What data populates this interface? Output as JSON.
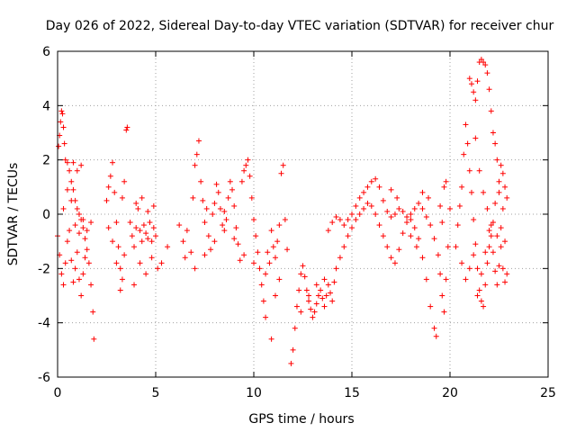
{
  "chart_data": {
    "type": "scatter",
    "title": "Day 026 of 2022, Sidereal Day-to-day VTEC variation (SDTVAR) for receiver chur",
    "xlabel": "GPS time / hours",
    "ylabel": "SDTVAR / TECUs",
    "xlim": [
      0,
      25
    ],
    "ylim": [
      -6,
      6
    ],
    "xticks": [
      0,
      5,
      10,
      15,
      20,
      25
    ],
    "yticks": [
      -6,
      -4,
      -2,
      0,
      2,
      4,
      6
    ],
    "xtick_labels": [
      "0",
      "5",
      "10",
      "15",
      "20",
      "25"
    ],
    "ytick_labels": [
      "-6",
      "-4",
      "-2",
      "0",
      "2",
      "4",
      "6"
    ],
    "grid": true,
    "marker": "+",
    "color": "#ff0000",
    "series": [
      {
        "name": "SDTVAR",
        "points": [
          [
            0.0,
            -0.8
          ],
          [
            0.05,
            2.5
          ],
          [
            0.1,
            2.9
          ],
          [
            0.15,
            3.4
          ],
          [
            0.2,
            3.8
          ],
          [
            0.25,
            3.7
          ],
          [
            0.3,
            3.2
          ],
          [
            0.35,
            2.6
          ],
          [
            0.4,
            2.0
          ],
          [
            0.5,
            1.9
          ],
          [
            0.6,
            1.6
          ],
          [
            0.7,
            1.2
          ],
          [
            0.8,
            0.9
          ],
          [
            0.9,
            0.5
          ],
          [
            1.0,
            0.2
          ],
          [
            1.1,
            0.0
          ],
          [
            1.2,
            -0.2
          ],
          [
            1.3,
            -0.5
          ],
          [
            1.4,
            -0.9
          ],
          [
            1.5,
            -1.3
          ],
          [
            1.6,
            -1.8
          ],
          [
            1.7,
            -2.6
          ],
          [
            1.8,
            -3.6
          ],
          [
            1.85,
            -4.6
          ],
          [
            0.1,
            -1.5
          ],
          [
            0.2,
            -2.2
          ],
          [
            0.3,
            -2.6
          ],
          [
            0.4,
            -1.8
          ],
          [
            0.5,
            -1.0
          ],
          [
            0.6,
            -0.6
          ],
          [
            0.7,
            -1.7
          ],
          [
            0.8,
            -2.5
          ],
          [
            0.9,
            -2.0
          ],
          [
            1.0,
            -1.4
          ],
          [
            1.1,
            -2.4
          ],
          [
            1.2,
            -3.0
          ],
          [
            1.3,
            -2.2
          ],
          [
            1.4,
            -1.6
          ],
          [
            0.3,
            0.2
          ],
          [
            0.5,
            0.9
          ],
          [
            0.7,
            0.5
          ],
          [
            0.9,
            -0.4
          ],
          [
            1.1,
            -0.7
          ],
          [
            1.3,
            -0.2
          ],
          [
            1.5,
            -0.6
          ],
          [
            1.7,
            -0.3
          ],
          [
            0.8,
            1.9
          ],
          [
            1.0,
            1.6
          ],
          [
            1.2,
            1.8
          ],
          [
            2.5,
            0.5
          ],
          [
            2.6,
            1.0
          ],
          [
            2.7,
            1.4
          ],
          [
            2.8,
            1.9
          ],
          [
            2.9,
            0.8
          ],
          [
            3.0,
            -0.3
          ],
          [
            3.1,
            -1.2
          ],
          [
            3.2,
            -2.0
          ],
          [
            3.3,
            -2.4
          ],
          [
            3.4,
            -1.5
          ],
          [
            2.6,
            -0.5
          ],
          [
            2.8,
            -1.0
          ],
          [
            3.0,
            -1.8
          ],
          [
            3.2,
            -2.8
          ],
          [
            3.5,
            3.1
          ],
          [
            3.55,
            3.2
          ],
          [
            3.4,
            1.2
          ],
          [
            3.3,
            0.6
          ],
          [
            3.7,
            -0.3
          ],
          [
            3.8,
            -0.8
          ],
          [
            3.9,
            -1.2
          ],
          [
            4.0,
            -0.5
          ],
          [
            4.1,
            0.2
          ],
          [
            4.2,
            -0.6
          ],
          [
            4.3,
            -1.0
          ],
          [
            4.4,
            -0.4
          ],
          [
            4.5,
            -0.7
          ],
          [
            4.6,
            -0.9
          ],
          [
            4.7,
            -0.3
          ],
          [
            4.8,
            -1.0
          ],
          [
            4.9,
            -0.5
          ],
          [
            5.0,
            -0.8
          ],
          [
            3.9,
            -2.6
          ],
          [
            4.2,
            -1.8
          ],
          [
            4.5,
            -2.2
          ],
          [
            4.8,
            -1.6
          ],
          [
            5.1,
            -2.0
          ],
          [
            4.0,
            0.4
          ],
          [
            4.3,
            0.6
          ],
          [
            4.6,
            0.1
          ],
          [
            4.9,
            0.3
          ],
          [
            5.3,
            -1.8
          ],
          [
            5.6,
            -1.2
          ],
          [
            6.2,
            -0.4
          ],
          [
            6.4,
            -1.0
          ],
          [
            6.6,
            -0.6
          ],
          [
            6.8,
            -1.4
          ],
          [
            6.9,
            0.6
          ],
          [
            7.0,
            1.8
          ],
          [
            7.1,
            2.2
          ],
          [
            7.2,
            2.7
          ],
          [
            7.3,
            1.2
          ],
          [
            7.4,
            0.5
          ],
          [
            7.5,
            -0.3
          ],
          [
            7.6,
            0.2
          ],
          [
            7.7,
            -0.8
          ],
          [
            7.8,
            -1.3
          ],
          [
            7.9,
            0.0
          ],
          [
            8.0,
            0.4
          ],
          [
            8.1,
            1.1
          ],
          [
            8.2,
            0.8
          ],
          [
            8.3,
            0.2
          ],
          [
            8.4,
            -0.4
          ],
          [
            8.5,
            0.1
          ],
          [
            8.6,
            -0.2
          ],
          [
            8.7,
            0.6
          ],
          [
            8.8,
            1.2
          ],
          [
            8.9,
            0.9
          ],
          [
            9.0,
            0.3
          ],
          [
            9.1,
            -0.5
          ],
          [
            9.2,
            -1.1
          ],
          [
            9.3,
            -1.7
          ],
          [
            9.4,
            1.2
          ],
          [
            9.5,
            1.6
          ],
          [
            9.6,
            1.8
          ],
          [
            9.7,
            2.0
          ],
          [
            9.8,
            1.4
          ],
          [
            9.9,
            0.6
          ],
          [
            10.0,
            -0.2
          ],
          [
            6.5,
            -1.6
          ],
          [
            7.0,
            -2.0
          ],
          [
            7.5,
            -1.5
          ],
          [
            8.0,
            -1.0
          ],
          [
            8.5,
            -0.6
          ],
          [
            9.0,
            -0.9
          ],
          [
            9.5,
            -1.5
          ],
          [
            10.0,
            -1.8
          ],
          [
            10.1,
            -0.8
          ],
          [
            10.2,
            -1.4
          ],
          [
            10.3,
            -2.0
          ],
          [
            10.4,
            -2.6
          ],
          [
            10.5,
            -3.2
          ],
          [
            10.6,
            -2.2
          ],
          [
            10.7,
            -1.4
          ],
          [
            10.8,
            -1.8
          ],
          [
            10.9,
            -0.6
          ],
          [
            11.0,
            -1.2
          ],
          [
            11.1,
            -1.6
          ],
          [
            11.2,
            -1.0
          ],
          [
            11.3,
            -0.4
          ],
          [
            11.4,
            1.5
          ],
          [
            11.5,
            1.8
          ],
          [
            11.3,
            -2.4
          ],
          [
            11.1,
            -3.0
          ],
          [
            10.9,
            -4.6
          ],
          [
            10.6,
            -3.8
          ],
          [
            11.6,
            -0.2
          ],
          [
            11.7,
            -1.3
          ],
          [
            11.9,
            -5.5
          ],
          [
            12.0,
            -5.0
          ],
          [
            12.1,
            -4.2
          ],
          [
            12.2,
            -3.4
          ],
          [
            12.3,
            -2.8
          ],
          [
            12.4,
            -2.2
          ],
          [
            12.5,
            -1.9
          ],
          [
            12.6,
            -2.3
          ],
          [
            12.7,
            -2.8
          ],
          [
            12.8,
            -3.2
          ],
          [
            12.9,
            -3.5
          ],
          [
            13.0,
            -3.8
          ],
          [
            13.1,
            -3.6
          ],
          [
            13.2,
            -3.3
          ],
          [
            13.3,
            -3.0
          ],
          [
            13.4,
            -2.8
          ],
          [
            13.5,
            -3.1
          ],
          [
            13.6,
            -3.4
          ],
          [
            13.7,
            -3.0
          ],
          [
            13.8,
            -2.6
          ],
          [
            13.9,
            -2.9
          ],
          [
            14.0,
            -3.2
          ],
          [
            12.4,
            -3.6
          ],
          [
            12.8,
            -3.0
          ],
          [
            13.2,
            -2.6
          ],
          [
            13.6,
            -2.4
          ],
          [
            14.1,
            -2.5
          ],
          [
            14.2,
            -2.0
          ],
          [
            14.4,
            -1.6
          ],
          [
            14.6,
            -1.2
          ],
          [
            14.8,
            -0.8
          ],
          [
            15.0,
            -0.5
          ],
          [
            15.2,
            -0.2
          ],
          [
            15.4,
            0.0
          ],
          [
            15.6,
            0.2
          ],
          [
            15.8,
            0.4
          ],
          [
            16.0,
            0.3
          ],
          [
            16.2,
            0.0
          ],
          [
            16.4,
            -0.4
          ],
          [
            16.6,
            -0.8
          ],
          [
            16.8,
            -1.2
          ],
          [
            17.0,
            -1.6
          ],
          [
            17.2,
            -1.8
          ],
          [
            17.4,
            -1.3
          ],
          [
            17.6,
            -0.7
          ],
          [
            17.8,
            -0.3
          ],
          [
            18.0,
            -0.2
          ],
          [
            18.2,
            -0.5
          ],
          [
            18.4,
            -0.9
          ],
          [
            18.6,
            -1.6
          ],
          [
            18.8,
            -2.4
          ],
          [
            19.0,
            -3.4
          ],
          [
            19.2,
            -4.2
          ],
          [
            19.3,
            -4.5
          ],
          [
            13.8,
            -0.6
          ],
          [
            14.0,
            -0.3
          ],
          [
            14.2,
            -0.1
          ],
          [
            14.4,
            -0.2
          ],
          [
            14.6,
            -0.4
          ],
          [
            14.8,
            -0.2
          ],
          [
            15.0,
            0.0
          ],
          [
            15.2,
            0.3
          ],
          [
            15.4,
            0.6
          ],
          [
            15.6,
            0.8
          ],
          [
            15.8,
            1.0
          ],
          [
            16.0,
            1.2
          ],
          [
            16.2,
            1.3
          ],
          [
            16.4,
            1.0
          ],
          [
            16.6,
            0.5
          ],
          [
            16.8,
            0.1
          ],
          [
            17.0,
            -0.1
          ],
          [
            17.2,
            0.0
          ],
          [
            17.4,
            0.2
          ],
          [
            17.6,
            0.1
          ],
          [
            17.8,
            -0.1
          ],
          [
            18.0,
            0.0
          ],
          [
            18.2,
            0.2
          ],
          [
            18.4,
            0.4
          ],
          [
            18.6,
            0.2
          ],
          [
            18.8,
            -0.1
          ],
          [
            19.0,
            -0.4
          ],
          [
            19.2,
            -0.9
          ],
          [
            19.4,
            -1.5
          ],
          [
            19.5,
            -2.2
          ],
          [
            19.6,
            -3.0
          ],
          [
            19.7,
            -3.6
          ],
          [
            19.8,
            -2.4
          ],
          [
            19.9,
            -1.2
          ],
          [
            20.0,
            0.2
          ],
          [
            19.6,
            -0.3
          ],
          [
            19.5,
            0.3
          ],
          [
            19.7,
            1.0
          ],
          [
            19.8,
            1.2
          ],
          [
            18.0,
            -0.8
          ],
          [
            18.3,
            -1.2
          ],
          [
            18.6,
            0.8
          ],
          [
            18.9,
            0.6
          ],
          [
            17.0,
            0.9
          ],
          [
            17.3,
            0.6
          ],
          [
            20.3,
            -1.2
          ],
          [
            20.4,
            -0.4
          ],
          [
            20.5,
            0.3
          ],
          [
            20.6,
            1.0
          ],
          [
            20.7,
            2.2
          ],
          [
            20.8,
            3.3
          ],
          [
            20.9,
            2.6
          ],
          [
            21.0,
            1.6
          ],
          [
            21.1,
            0.8
          ],
          [
            21.2,
            -0.2
          ],
          [
            21.3,
            -1.1
          ],
          [
            21.4,
            -2.0
          ],
          [
            21.5,
            -2.8
          ],
          [
            21.6,
            -3.2
          ],
          [
            21.7,
            -3.4
          ],
          [
            21.8,
            -2.6
          ],
          [
            21.9,
            -1.8
          ],
          [
            22.0,
            -1.2
          ],
          [
            22.1,
            -0.8
          ],
          [
            22.2,
            -1.4
          ],
          [
            22.3,
            -2.1
          ],
          [
            22.4,
            -2.6
          ],
          [
            22.5,
            -1.9
          ],
          [
            22.6,
            -1.2
          ],
          [
            22.7,
            -2.0
          ],
          [
            22.8,
            -2.5
          ],
          [
            22.9,
            -2.2
          ],
          [
            20.6,
            -1.8
          ],
          [
            20.8,
            -2.4
          ],
          [
            21.0,
            -2.0
          ],
          [
            21.2,
            -1.5
          ],
          [
            21.4,
            -3.0
          ],
          [
            21.6,
            -2.2
          ],
          [
            21.8,
            -1.4
          ],
          [
            22.0,
            -0.6
          ],
          [
            22.2,
            -0.3
          ],
          [
            22.4,
            -0.8
          ],
          [
            22.6,
            -0.5
          ],
          [
            22.8,
            -1.0
          ],
          [
            21.0,
            5.0
          ],
          [
            21.1,
            4.8
          ],
          [
            21.2,
            4.5
          ],
          [
            21.3,
            4.2
          ],
          [
            21.4,
            4.9
          ],
          [
            21.5,
            5.6
          ],
          [
            21.6,
            5.7
          ],
          [
            21.7,
            5.6
          ],
          [
            21.8,
            5.5
          ],
          [
            21.9,
            5.2
          ],
          [
            22.0,
            4.6
          ],
          [
            22.1,
            3.8
          ],
          [
            22.2,
            3.0
          ],
          [
            22.3,
            2.6
          ],
          [
            22.4,
            2.0
          ],
          [
            22.5,
            1.2
          ],
          [
            22.6,
            1.8
          ],
          [
            22.7,
            1.5
          ],
          [
            22.8,
            1.0
          ],
          [
            22.9,
            0.6
          ],
          [
            21.3,
            2.8
          ],
          [
            21.5,
            1.6
          ],
          [
            21.7,
            0.8
          ],
          [
            21.9,
            0.2
          ],
          [
            22.1,
            -0.4
          ],
          [
            22.3,
            0.4
          ],
          [
            22.5,
            0.8
          ],
          [
            22.7,
            0.2
          ]
        ]
      }
    ]
  }
}
